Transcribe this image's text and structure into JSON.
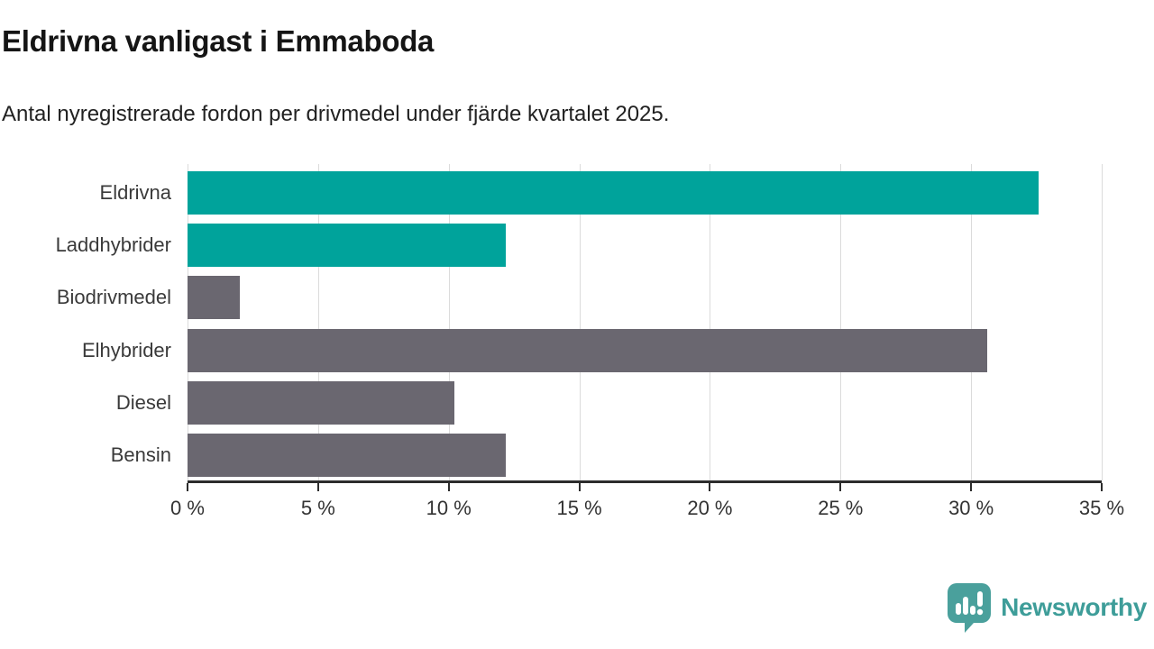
{
  "header": {
    "title": "Eldrivna vanligast i Emmaboda",
    "subtitle": "Antal nyregistrerade fordon per drivmedel under fjärde kvartalet 2025."
  },
  "chart_data": {
    "type": "bar",
    "orientation": "horizontal",
    "title": "Eldrivna vanligast i Emmaboda",
    "subtitle": "Antal nyregistrerade fordon per drivmedel under fjärde kvartalet 2025.",
    "categories": [
      "Eldrivna",
      "Laddhybrider",
      "Biodrivmedel",
      "Elhybrider",
      "Diesel",
      "Bensin"
    ],
    "values": [
      32.6,
      12.2,
      2.0,
      30.6,
      10.2,
      12.2
    ],
    "unit": "%",
    "bar_colors": [
      "#00a39b",
      "#00a39b",
      "#6a6770",
      "#6a6770",
      "#6a6770",
      "#6a6770"
    ],
    "highlight_color": "#00a39b",
    "default_color": "#6a6770",
    "xlim": [
      0,
      35
    ],
    "x_ticks": [
      0,
      5,
      10,
      15,
      20,
      25,
      30,
      35
    ],
    "x_tick_labels": [
      "0 %",
      "5 %",
      "10 %",
      "15 %",
      "20 %",
      "25 %",
      "30 %",
      "35 %"
    ],
    "grid": "vertical",
    "legend": "none"
  },
  "footer": {
    "brand": "Newsworthy"
  },
  "colors": {
    "bar_teal": "#00a39b",
    "bar_gray": "#6a6770",
    "axis": "#2c2c2c",
    "gridline": "#dbdbdb",
    "title_text": "#151515",
    "subtitle_text": "#212121",
    "label_text": "#3a3a3a",
    "tick_text": "#333333",
    "logo_bubble": "#4aa09c",
    "logo_text": "#3e9d99"
  }
}
